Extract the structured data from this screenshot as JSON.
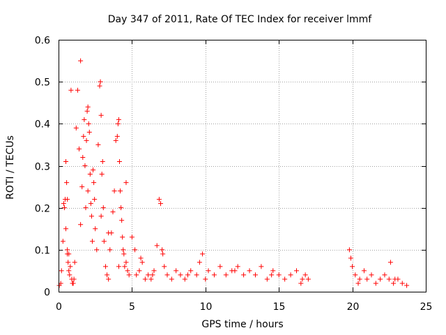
{
  "chart_data": {
    "type": "scatter",
    "title": "Day 347 of 2011, Rate Of TEC Index for receiver lmmf",
    "xlabel": "GPS time / hours",
    "ylabel": "ROTI / TECUs",
    "xlim": [
      0,
      25
    ],
    "ylim": [
      0,
      0.6
    ],
    "xticks": [
      0,
      5,
      10,
      15,
      20,
      25
    ],
    "xtick_labels": [
      "0",
      "5",
      "10",
      "15",
      "20",
      "25"
    ],
    "yticks": [
      0,
      0.1,
      0.2,
      0.3,
      0.4,
      0.5,
      0.6
    ],
    "ytick_labels": [
      "0",
      "0.1",
      "0.2",
      "0.3",
      "0.4",
      "0.5",
      "0.6"
    ],
    "grid": true,
    "marker": "+",
    "color": "#ff0000",
    "series": [
      {
        "name": "ROTI",
        "x": [
          0.05,
          0.15,
          0.2,
          0.3,
          0.35,
          0.4,
          0.45,
          0.5,
          0.5,
          0.55,
          0.6,
          0.6,
          0.65,
          0.7,
          0.7,
          0.75,
          0.8,
          0.85,
          0.9,
          0.95,
          1.0,
          1.05,
          1.1,
          1.2,
          1.3,
          1.4,
          1.5,
          1.6,
          1.65,
          1.7,
          1.75,
          1.8,
          1.85,
          1.9,
          1.95,
          2.0,
          2.05,
          2.1,
          2.15,
          2.2,
          2.25,
          2.3,
          2.35,
          2.4,
          2.45,
          2.5,
          2.6,
          2.7,
          2.8,
          2.85,
          2.9,
          2.95,
          3.0,
          3.05,
          3.1,
          3.2,
          3.3,
          3.4,
          3.5,
          3.6,
          3.7,
          3.8,
          3.9,
          4.0,
          4.05,
          4.1,
          4.15,
          4.2,
          4.25,
          4.3,
          4.35,
          4.4,
          4.45,
          4.5,
          4.6,
          4.7,
          4.8,
          5.0,
          5.2,
          5.3,
          5.5,
          5.7,
          5.9,
          6.1,
          6.3,
          6.5,
          6.7,
          6.85,
          6.95,
          7.05,
          7.2,
          7.4,
          7.7,
          8.0,
          8.3,
          8.6,
          9.0,
          9.4,
          9.6,
          9.8,
          10.2,
          10.6,
          11.0,
          11.4,
          11.8,
          12.2,
          12.6,
          13.0,
          13.4,
          13.8,
          14.2,
          14.6,
          15.0,
          15.4,
          15.8,
          16.2,
          16.5,
          16.8,
          17.0,
          19.8,
          19.9,
          20.0,
          20.2,
          20.5,
          20.8,
          21.0,
          21.3,
          21.6,
          21.9,
          22.2,
          22.5,
          22.6,
          22.8,
          23.1,
          23.4,
          23.7,
          0.6,
          1.5,
          2.0,
          2.9,
          3.4,
          4.1,
          4.6,
          5.6,
          6.4,
          7.1,
          8.8,
          10.0,
          12.0,
          14.5,
          16.6,
          20.4,
          22.9
        ],
        "y": [
          0.015,
          0.02,
          0.05,
          0.12,
          0.21,
          0.2,
          0.22,
          0.15,
          0.31,
          0.26,
          0.22,
          0.1,
          0.07,
          0.09,
          0.05,
          0.04,
          0.06,
          0.48,
          0.03,
          0.02,
          0.02,
          0.03,
          0.07,
          0.39,
          0.48,
          0.34,
          0.55,
          0.25,
          0.32,
          0.37,
          0.41,
          0.3,
          0.2,
          0.36,
          0.43,
          0.44,
          0.4,
          0.38,
          0.28,
          0.21,
          0.18,
          0.12,
          0.29,
          0.26,
          0.22,
          0.15,
          0.1,
          0.35,
          0.49,
          0.5,
          0.42,
          0.28,
          0.31,
          0.2,
          0.12,
          0.06,
          0.04,
          0.03,
          0.1,
          0.14,
          0.19,
          0.24,
          0.36,
          0.37,
          0.4,
          0.41,
          0.31,
          0.24,
          0.2,
          0.17,
          0.13,
          0.1,
          0.09,
          0.06,
          0.26,
          0.05,
          0.04,
          0.13,
          0.1,
          0.04,
          0.05,
          0.07,
          0.03,
          0.04,
          0.03,
          0.05,
          0.11,
          0.22,
          0.21,
          0.1,
          0.06,
          0.04,
          0.03,
          0.05,
          0.04,
          0.03,
          0.05,
          0.04,
          0.07,
          0.09,
          0.05,
          0.04,
          0.06,
          0.04,
          0.05,
          0.06,
          0.04,
          0.05,
          0.04,
          0.06,
          0.03,
          0.05,
          0.04,
          0.03,
          0.04,
          0.05,
          0.02,
          0.04,
          0.03,
          0.1,
          0.08,
          0.06,
          0.04,
          0.03,
          0.05,
          0.03,
          0.04,
          0.02,
          0.03,
          0.04,
          0.03,
          0.07,
          0.02,
          0.03,
          0.02,
          0.015,
          0.09,
          0.16,
          0.24,
          0.18,
          0.14,
          0.06,
          0.07,
          0.08,
          0.04,
          0.09,
          0.04,
          0.03,
          0.05,
          0.04,
          0.03,
          0.02,
          0.03
        ]
      }
    ]
  },
  "colors": {
    "points": "#ff0000",
    "axes": "#000000",
    "grid": "#a0a0a0"
  }
}
